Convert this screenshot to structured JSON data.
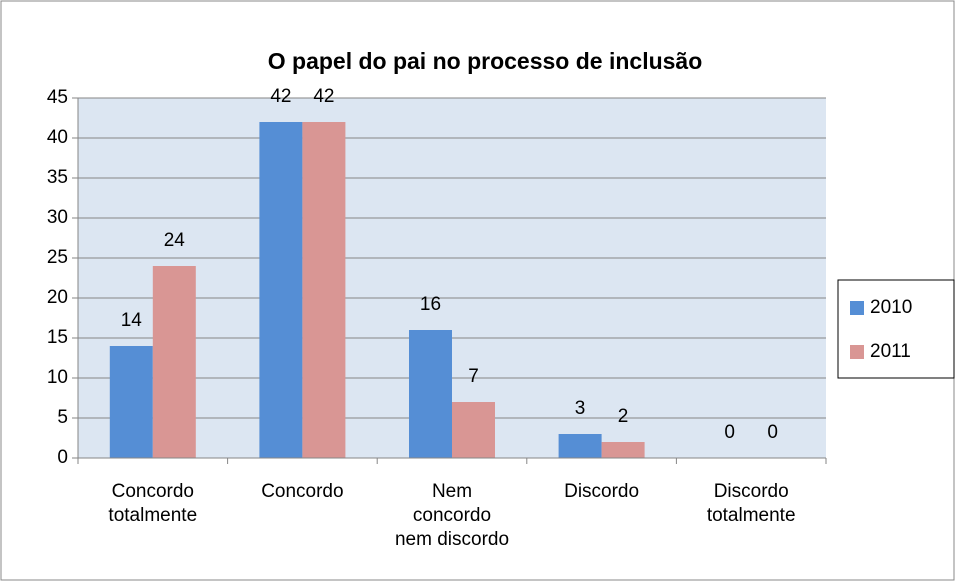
{
  "chart_data": {
    "type": "bar",
    "title": "O papel do pai no processo de inclusão",
    "categories": [
      "Concordo totalmente",
      "Concordo",
      "Nem concordo nem discordo",
      "Discordo",
      "Discordo totalmente"
    ],
    "series": [
      {
        "name": "2010",
        "color": "#558ed5",
        "values": [
          14,
          42,
          16,
          3,
          0
        ]
      },
      {
        "name": "2011",
        "color": "#d99694",
        "values": [
          24,
          42,
          7,
          2,
          0
        ]
      }
    ],
    "ylim": [
      0,
      45
    ],
    "yticks": [
      0,
      5,
      10,
      15,
      20,
      25,
      30,
      35,
      40,
      45
    ],
    "grid": true,
    "legend": "right"
  }
}
